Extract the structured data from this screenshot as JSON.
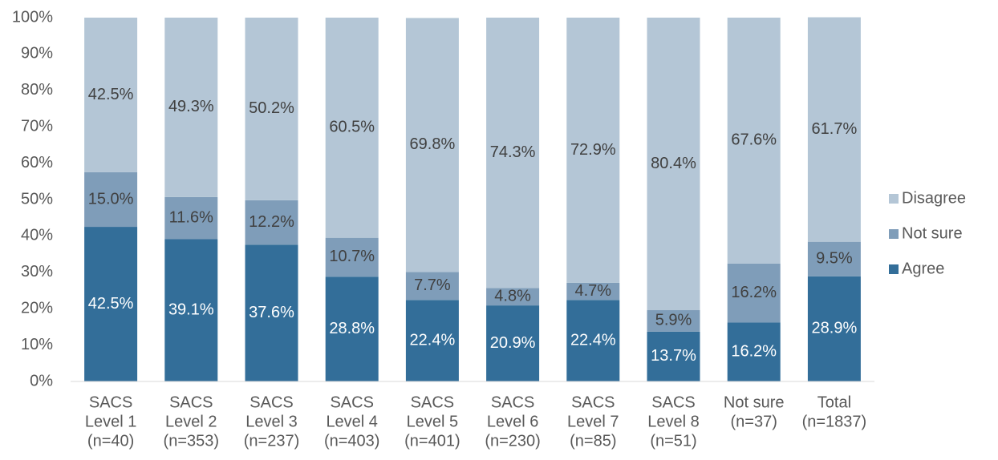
{
  "chart_data": {
    "type": "stacked_bar",
    "categories": [
      [
        "SACS",
        "Level 1",
        "(n=40)"
      ],
      [
        "SACS",
        "Level 2",
        "(n=353)"
      ],
      [
        "SACS",
        "Level 3",
        "(n=237)"
      ],
      [
        "SACS",
        "Level 4",
        "(n=403)"
      ],
      [
        "SACS",
        "Level 5",
        "(n=401)"
      ],
      [
        "SACS",
        "Level 6",
        "(n=230)"
      ],
      [
        "SACS",
        "Level 7",
        "(n=85)"
      ],
      [
        "SACS",
        "Level 8",
        "(n=51)"
      ],
      [
        "Not sure",
        "(n=37)"
      ],
      [
        "Total",
        "(n=1837)"
      ]
    ],
    "series": [
      {
        "name": "Agree",
        "color": "#336e99",
        "label_color": "#ffffff",
        "values": [
          42.5,
          39.1,
          37.6,
          28.8,
          22.4,
          20.9,
          22.4,
          13.7,
          16.2,
          28.9
        ],
        "value_labels": [
          "42.5%",
          "39.1%",
          "37.6%",
          "28.8%",
          "22.4%",
          "20.9%",
          "22.4%",
          "13.7%",
          "16.2%",
          "28.9%"
        ]
      },
      {
        "name": "Not sure",
        "color": "#7f9db9",
        "label_color": "#404040",
        "values": [
          15.0,
          11.6,
          12.2,
          10.7,
          7.7,
          4.8,
          4.7,
          5.9,
          16.2,
          9.5
        ],
        "value_labels": [
          "15.0%",
          "11.6%",
          "12.2%",
          "10.7%",
          "7.7%",
          "4.8%",
          "4.7%",
          "5.9%",
          "16.2%",
          "9.5%"
        ]
      },
      {
        "name": "Disagree",
        "color": "#b4c6d6",
        "label_color": "#404040",
        "values": [
          42.5,
          49.3,
          50.2,
          60.5,
          69.8,
          74.3,
          72.9,
          80.4,
          67.6,
          61.7
        ],
        "value_labels": [
          "42.5%",
          "49.3%",
          "50.2%",
          "60.5%",
          "69.8%",
          "74.3%",
          "72.9%",
          "80.4%",
          "67.6%",
          "61.7%"
        ]
      }
    ],
    "ylim": [
      0,
      100
    ],
    "yticks": [
      {
        "value": 0,
        "label": "0%"
      },
      {
        "value": 10,
        "label": "10%"
      },
      {
        "value": 20,
        "label": "20%"
      },
      {
        "value": 30,
        "label": "30%"
      },
      {
        "value": 40,
        "label": "40%"
      },
      {
        "value": 50,
        "label": "50%"
      },
      {
        "value": 60,
        "label": "60%"
      },
      {
        "value": 70,
        "label": "70%"
      },
      {
        "value": 80,
        "label": "80%"
      },
      {
        "value": 90,
        "label": "90%"
      },
      {
        "value": 100,
        "label": "100%"
      }
    ],
    "legend": "right"
  }
}
